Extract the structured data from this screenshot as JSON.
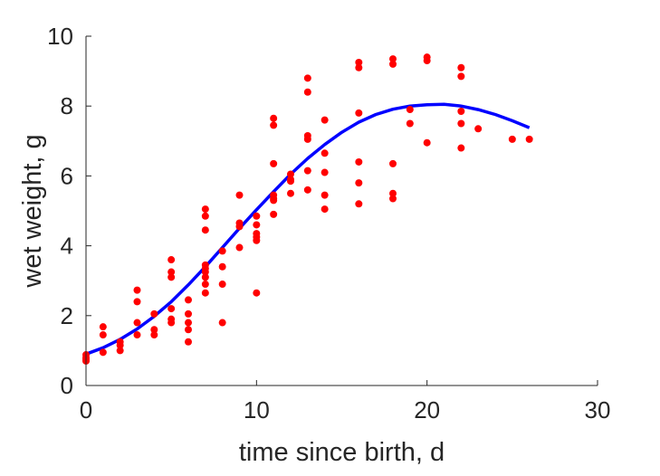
{
  "chart_data": {
    "type": "scatter",
    "title": "",
    "xlabel": "time since birth, d",
    "ylabel": "wet weight, g",
    "xlim": [
      0,
      30
    ],
    "ylim": [
      0,
      10
    ],
    "xticks": [
      0,
      10,
      20,
      30
    ],
    "yticks": [
      0,
      2,
      4,
      6,
      8,
      10
    ],
    "grid": false,
    "legend": "none",
    "series": [
      {
        "kind": "points",
        "color": "#ff0000",
        "points": [
          [
            0,
            0.7
          ],
          [
            0,
            0.75
          ],
          [
            0,
            0.8
          ],
          [
            0,
            0.88
          ],
          [
            1,
            0.95
          ],
          [
            1,
            1.45
          ],
          [
            1,
            1.68
          ],
          [
            2,
            1.0
          ],
          [
            2,
            1.15
          ],
          [
            2,
            1.25
          ],
          [
            3,
            1.45
          ],
          [
            3,
            1.8
          ],
          [
            3,
            2.4
          ],
          [
            3,
            2.73
          ],
          [
            4,
            1.45
          ],
          [
            4,
            1.6
          ],
          [
            4,
            2.05
          ],
          [
            5,
            1.8
          ],
          [
            5,
            1.9
          ],
          [
            5,
            2.2
          ],
          [
            5,
            3.1
          ],
          [
            5,
            3.25
          ],
          [
            5,
            3.6
          ],
          [
            6,
            1.25
          ],
          [
            6,
            1.6
          ],
          [
            6,
            1.8
          ],
          [
            6,
            2.05
          ],
          [
            6,
            2.45
          ],
          [
            7,
            2.65
          ],
          [
            7,
            2.9
          ],
          [
            7,
            3.1
          ],
          [
            7,
            3.25
          ],
          [
            7,
            3.35
          ],
          [
            7,
            3.45
          ],
          [
            7,
            4.45
          ],
          [
            7,
            4.85
          ],
          [
            7,
            5.05
          ],
          [
            8,
            1.8
          ],
          [
            8,
            2.9
          ],
          [
            8,
            3.4
          ],
          [
            8,
            3.85
          ],
          [
            9,
            3.95
          ],
          [
            9,
            4.55
          ],
          [
            9,
            4.65
          ],
          [
            9,
            5.45
          ],
          [
            10,
            2.65
          ],
          [
            10,
            4.15
          ],
          [
            10,
            4.25
          ],
          [
            10,
            4.35
          ],
          [
            10,
            4.6
          ],
          [
            10,
            4.85
          ],
          [
            11,
            4.9
          ],
          [
            11,
            5.3
          ],
          [
            11,
            5.35
          ],
          [
            11,
            5.45
          ],
          [
            11,
            6.35
          ],
          [
            11,
            7.45
          ],
          [
            11,
            7.65
          ],
          [
            12,
            5.5
          ],
          [
            12,
            5.85
          ],
          [
            12,
            5.9
          ],
          [
            12,
            6.05
          ],
          [
            13,
            5.6
          ],
          [
            13,
            6.15
          ],
          [
            13,
            7.05
          ],
          [
            13,
            7.15
          ],
          [
            13,
            8.4
          ],
          [
            13,
            8.8
          ],
          [
            14,
            5.05
          ],
          [
            14,
            5.45
          ],
          [
            14,
            6.1
          ],
          [
            14,
            6.65
          ],
          [
            14,
            7.6
          ],
          [
            16,
            5.2
          ],
          [
            16,
            5.8
          ],
          [
            16,
            6.4
          ],
          [
            16,
            7.8
          ],
          [
            16,
            9.1
          ],
          [
            16,
            9.25
          ],
          [
            18,
            5.35
          ],
          [
            18,
            5.5
          ],
          [
            18,
            6.35
          ],
          [
            18,
            9.2
          ],
          [
            18,
            9.35
          ],
          [
            19,
            7.5
          ],
          [
            19,
            7.9
          ],
          [
            20,
            6.95
          ],
          [
            20,
            9.3
          ],
          [
            20,
            9.4
          ],
          [
            22,
            6.8
          ],
          [
            22,
            7.5
          ],
          [
            22,
            7.85
          ],
          [
            22,
            8.85
          ],
          [
            22,
            9.1
          ],
          [
            23,
            7.35
          ],
          [
            25,
            7.05
          ],
          [
            26,
            7.05
          ]
        ]
      },
      {
        "kind": "curve",
        "color": "#0000ff",
        "points": [
          [
            0,
            0.9
          ],
          [
            1,
            1.08
          ],
          [
            2,
            1.32
          ],
          [
            3,
            1.62
          ],
          [
            4,
            1.98
          ],
          [
            5,
            2.4
          ],
          [
            6,
            2.88
          ],
          [
            7,
            3.4
          ],
          [
            8,
            3.95
          ],
          [
            9,
            4.5
          ],
          [
            10,
            5.03
          ],
          [
            11,
            5.55
          ],
          [
            12,
            6.05
          ],
          [
            13,
            6.5
          ],
          [
            14,
            6.9
          ],
          [
            15,
            7.25
          ],
          [
            16,
            7.54
          ],
          [
            17,
            7.76
          ],
          [
            18,
            7.91
          ],
          [
            19,
            8.0
          ],
          [
            20,
            8.04
          ],
          [
            21,
            8.05
          ],
          [
            22,
            8.0
          ],
          [
            23,
            7.9
          ],
          [
            24,
            7.76
          ],
          [
            25,
            7.58
          ],
          [
            26,
            7.38
          ]
        ]
      }
    ]
  }
}
